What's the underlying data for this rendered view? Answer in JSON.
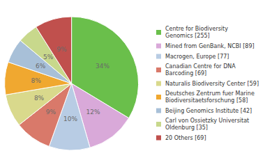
{
  "chart_data": {
    "type": "pie",
    "categories": [
      "Centre for Biodiversity\nGenomics [255]",
      "Mined from GenBank, NCBI [89]",
      "Macrogen, Europe [77]",
      "Canadian Centre for DNA\nBarcoding [69]",
      "Naturalis Biodiversity Center [59]",
      "Deutsches Zentrum fuer Marine\nBiodiversitaetsforschung [58]",
      "Beijing Genomics Institute [42]",
      "Carl von Ossietzky Universitat\nOldenburg [35]",
      "20 Others [69]"
    ],
    "values": [
      34,
      12,
      10,
      9,
      8,
      8,
      6,
      5,
      9
    ],
    "value_labels": [
      "34%",
      "12%",
      "10%",
      "9%",
      "8%",
      "8%",
      "6%",
      "5%",
      "9%"
    ],
    "colors": [
      "#6abf4b",
      "#d9a9d9",
      "#b8cce4",
      "#d9796a",
      "#d9d98c",
      "#f0a830",
      "#a8c0d8",
      "#c8d88c",
      "#c0504d"
    ],
    "data_labels": true,
    "legend": "right"
  }
}
